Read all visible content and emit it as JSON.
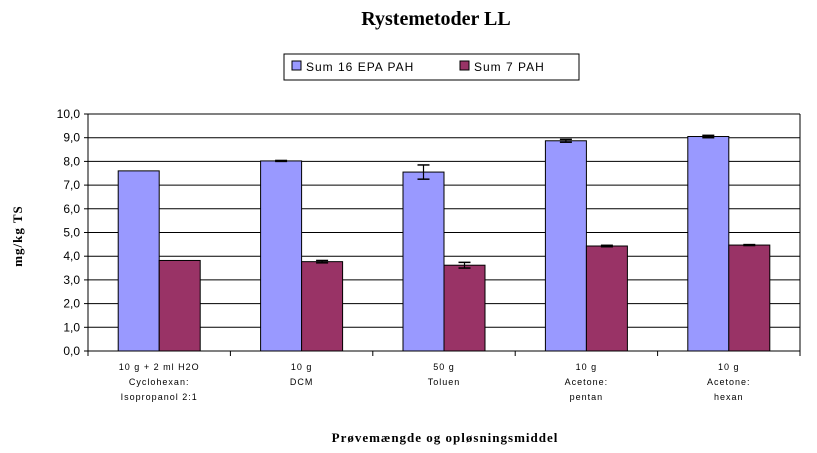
{
  "chart_data": {
    "type": "bar",
    "title": "Rystemetoder LL",
    "xlabel": "Prøvemængde og opløsningsmiddel",
    "ylabel": "mg/kg TS",
    "ylim": [
      0,
      10
    ],
    "yticks": [
      "0,0",
      "1,0",
      "2,0",
      "3,0",
      "4,0",
      "5,0",
      "6,0",
      "7,0",
      "8,0",
      "9,0",
      "10,0"
    ],
    "grid": true,
    "legend_position": "top",
    "categories": [
      [
        "10 g + 2 ml H2O",
        "Cyclohexan:",
        "Isopropanol 2:1"
      ],
      [
        "10 g",
        "DCM"
      ],
      [
        "50 g",
        "Toluen"
      ],
      [
        "10 g",
        "Acetone:",
        "pentan"
      ],
      [
        "10 g",
        "Acetone:",
        "hexan"
      ]
    ],
    "series": [
      {
        "name": "Sum 16 EPA PAH",
        "color": "#9999ff",
        "values": [
          7.6,
          8.02,
          7.55,
          8.87,
          9.05
        ],
        "errors": [
          0,
          0.02,
          0.3,
          0.06,
          0.05
        ]
      },
      {
        "name": "Sum 7 PAH",
        "color": "#993366",
        "values": [
          3.82,
          3.77,
          3.62,
          4.43,
          4.47
        ],
        "errors": [
          0,
          0.05,
          0.12,
          0.03,
          0.02
        ]
      }
    ]
  }
}
